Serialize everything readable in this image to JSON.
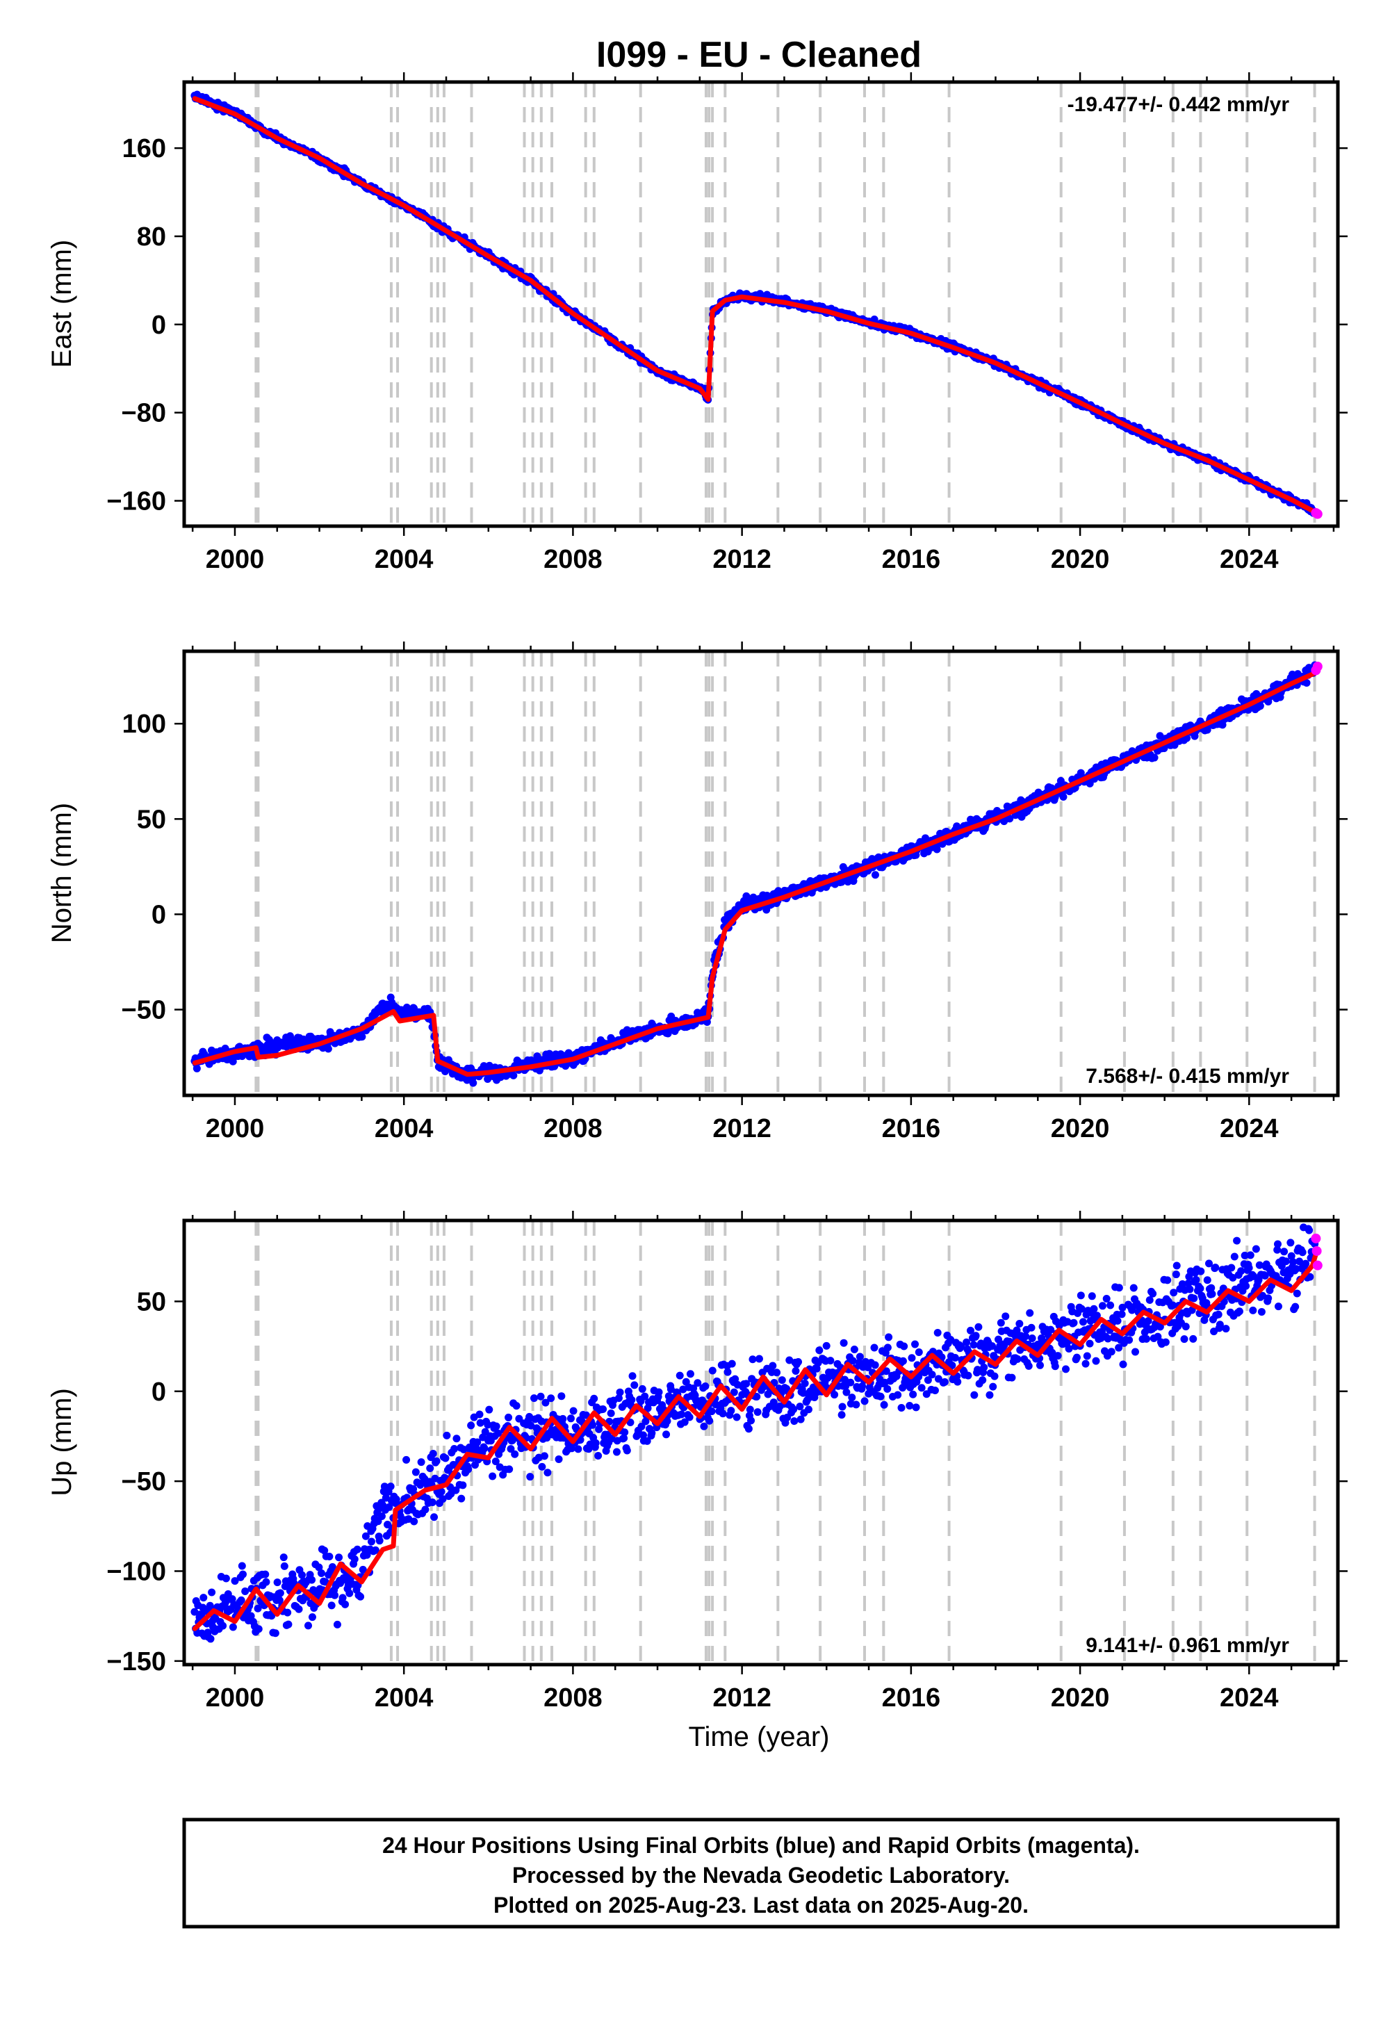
{
  "title": "I099  - EU - Cleaned",
  "xlabel": "Time (year)",
  "footer": {
    "line1": "24 Hour Positions Using Final Orbits (blue) and Rapid Orbits (magenta).",
    "line2": "Processed by the Nevada Geodetic Laboratory.",
    "line3": "Plotted on 2025-Aug-23. Last data on 2025-Aug-20."
  },
  "colors": {
    "final_orbits": "#0000ff",
    "rapid_orbits": "#ff00ff",
    "model_fit": "#ff0000",
    "event_lines": "#c8c8c8"
  },
  "chart_data": [
    {
      "type": "scatter",
      "component": "east",
      "ylabel": "East (mm)",
      "xlim": [
        1998.8,
        2026.1
      ],
      "ylim": [
        -183,
        220
      ],
      "x_ticks": [
        2000,
        2004,
        2008,
        2012,
        2016,
        2020,
        2024
      ],
      "y_ticks": [
        160,
        80,
        0,
        -80,
        -160
      ],
      "y_tick_labels": [
        "160",
        "80",
        "0",
        "−80",
        "−160"
      ],
      "rate_label": "-19.477+/- 0.442 mm/yr",
      "rate_label_position": "top-right",
      "scatter_spread_mm": 2.5,
      "series": [
        {
          "name": "24 Hour Positions Using Final Orbits",
          "color": "#0000ff",
          "x": [
            1999.05,
            2000.0,
            2001.0,
            2002.0,
            2003.0,
            2004.0,
            2005.0,
            2006.0,
            2007.0,
            2008.0,
            2009.0,
            2010.0,
            2011.0,
            2011.2,
            2011.3,
            2011.6,
            2012.0,
            2013.0,
            2014.0,
            2015.0,
            2016.0,
            2017.0,
            2018.0,
            2019.0,
            2020.0,
            2021.0,
            2022.0,
            2023.0,
            2024.0,
            2025.0,
            2025.55
          ],
          "y": [
            207,
            192,
            169,
            151,
            128,
            108,
            85,
            62,
            40,
            10,
            -16,
            -42,
            -58,
            -66,
            10,
            22,
            26,
            21,
            13,
            2,
            -8,
            -20,
            -35,
            -53,
            -71,
            -90,
            -108,
            -123,
            -141,
            -159,
            -170
          ]
        },
        {
          "name": "Rapid Orbits",
          "color": "#ff00ff",
          "x": [
            2025.58,
            2025.62
          ],
          "y": [
            -171,
            -172
          ]
        },
        {
          "name": "Model fit",
          "color": "#ff0000",
          "x": [
            1999.05,
            2000.0,
            2001.0,
            2002.0,
            2003.0,
            2004.0,
            2005.0,
            2006.0,
            2007.0,
            2008.0,
            2009.0,
            2010.0,
            2011.0,
            2011.2,
            2011.3,
            2011.6,
            2012.0,
            2013.0,
            2014.0,
            2015.0,
            2016.0,
            2017.0,
            2018.0,
            2019.0,
            2020.0,
            2021.0,
            2022.0,
            2023.0,
            2024.0,
            2025.0,
            2025.6
          ],
          "y": [
            205,
            191,
            169,
            151,
            128,
            108,
            85,
            62,
            40,
            10,
            -16,
            -42,
            -58,
            -68,
            12,
            22,
            25,
            20,
            12,
            1,
            -8,
            -21,
            -35,
            -53,
            -71,
            -90,
            -108,
            -123,
            -141,
            -159,
            -171
          ]
        }
      ],
      "event_lines": [
        2000.5,
        2000.55,
        2003.7,
        2003.85,
        2004.65,
        2004.8,
        2004.95,
        2005.6,
        2006.85,
        2007.05,
        2007.25,
        2007.5,
        2008.3,
        2008.5,
        2009.6,
        2011.15,
        2011.22,
        2011.3,
        2011.6,
        2012.85,
        2013.85,
        2014.9,
        2015.35,
        2016.9,
        2019.55,
        2021.05,
        2022.2,
        2022.85,
        2023.95,
        2025.55
      ]
    },
    {
      "type": "scatter",
      "component": "north",
      "ylabel": "North (mm)",
      "xlim": [
        1998.8,
        2026.1
      ],
      "ylim": [
        -95,
        138
      ],
      "x_ticks": [
        2000,
        2004,
        2008,
        2012,
        2016,
        2020,
        2024
      ],
      "y_ticks": [
        100,
        50,
        0,
        -50
      ],
      "y_tick_labels": [
        "100",
        "50",
        "0",
        "−50"
      ],
      "rate_label": "7.568+/- 0.415 mm/yr",
      "rate_label_position": "bottom-right",
      "scatter_spread_mm": 3,
      "series": [
        {
          "name": "24 Hour Positions Using Final Orbits",
          "color": "#0000ff",
          "x": [
            1999.05,
            2000.0,
            2001.0,
            2002.0,
            2003.0,
            2003.6,
            2003.9,
            2004.6,
            2004.85,
            2005.5,
            2006.0,
            2007.0,
            2008.0,
            2009.0,
            2010.0,
            2011.0,
            2011.2,
            2011.3,
            2011.6,
            2012.0,
            2013.0,
            2014.0,
            2015.0,
            2016.0,
            2017.0,
            2018.0,
            2019.0,
            2020.0,
            2021.0,
            2022.0,
            2023.0,
            2024.0,
            2025.0,
            2025.55
          ],
          "y": [
            -76,
            -73,
            -68,
            -67,
            -62,
            -45,
            -52,
            -52,
            -78,
            -85,
            -83,
            -79,
            -75,
            -67,
            -60,
            -55,
            -53,
            -30,
            -5,
            5,
            10,
            17,
            25,
            33,
            42,
            50,
            60,
            70,
            80,
            90,
            100,
            110,
            121,
            128
          ]
        },
        {
          "name": "Rapid Orbits",
          "color": "#ff00ff",
          "x": [
            2025.58,
            2025.62
          ],
          "y": [
            128,
            130
          ]
        },
        {
          "name": "Model fit",
          "color": "#ff0000",
          "x": [
            1999.05,
            2000.0,
            2000.5,
            2000.55,
            2001.0,
            2002.0,
            2003.0,
            2003.75,
            2003.9,
            2004.7,
            2004.8,
            2005.5,
            2006.0,
            2007.0,
            2008.0,
            2009.0,
            2010.0,
            2011.0,
            2011.2,
            2011.3,
            2011.6,
            2012.0,
            2013.0,
            2014.0,
            2015.0,
            2016.0,
            2017.0,
            2018.0,
            2019.0,
            2020.0,
            2021.0,
            2022.0,
            2023.0,
            2024.0,
            2025.0,
            2025.6
          ],
          "y": [
            -78,
            -72,
            -70,
            -75,
            -74,
            -68,
            -60,
            -51,
            -56,
            -53,
            -77,
            -84,
            -83,
            -80,
            -76,
            -68,
            -60,
            -55,
            -54,
            -33,
            -8,
            2,
            9,
            17,
            25,
            33,
            42,
            50,
            60,
            70,
            80,
            90,
            100,
            110,
            121,
            127
          ]
        }
      ],
      "event_lines": [
        2000.5,
        2000.55,
        2003.7,
        2003.85,
        2004.65,
        2004.8,
        2004.95,
        2005.6,
        2006.85,
        2007.05,
        2007.25,
        2007.5,
        2008.3,
        2008.5,
        2009.6,
        2011.15,
        2011.22,
        2011.3,
        2011.6,
        2012.85,
        2013.85,
        2014.9,
        2015.35,
        2016.9,
        2019.55,
        2021.05,
        2022.2,
        2022.85,
        2023.95,
        2025.55
      ]
    },
    {
      "type": "scatter",
      "component": "up",
      "ylabel": "Up (mm)",
      "xlim": [
        1998.8,
        2026.1
      ],
      "ylim": [
        -152,
        95
      ],
      "x_ticks": [
        2000,
        2004,
        2008,
        2012,
        2016,
        2020,
        2024
      ],
      "y_ticks": [
        50,
        0,
        -50,
        -100,
        -150
      ],
      "y_tick_labels": [
        "50",
        "0",
        "−50",
        "−100",
        "−150"
      ],
      "rate_label": "9.141+/- 0.961 mm/yr",
      "rate_label_position": "bottom-right",
      "scatter_spread_mm": 14,
      "series": [
        {
          "name": "24 Hour Positions Using Final Orbits",
          "color": "#0000ff",
          "x": [
            1999.05,
            2000.0,
            2001.0,
            2002.0,
            2003.0,
            2003.5,
            2003.8,
            2004.0,
            2005.0,
            2006.0,
            2007.0,
            2008.0,
            2009.0,
            2010.0,
            2011.0,
            2012.0,
            2013.0,
            2014.0,
            2015.0,
            2016.0,
            2017.0,
            2018.0,
            2019.0,
            2020.0,
            2021.0,
            2022.0,
            2023.0,
            2024.0,
            2025.0,
            2025.55
          ],
          "y": [
            -128,
            -120,
            -116,
            -110,
            -100,
            -60,
            -65,
            -60,
            -45,
            -30,
            -25,
            -20,
            -15,
            -10,
            -5,
            -2,
            0,
            5,
            10,
            12,
            15,
            22,
            27,
            32,
            40,
            45,
            52,
            60,
            65,
            75
          ]
        },
        {
          "name": "Rapid Orbits",
          "color": "#ff00ff",
          "x": [
            2025.58,
            2025.6,
            2025.62
          ],
          "y": [
            85,
            78,
            70
          ]
        },
        {
          "name": "Model fit",
          "color": "#ff0000",
          "x": [
            1999.05,
            1999.5,
            2000.0,
            2000.5,
            2001.0,
            2001.5,
            2002.0,
            2002.5,
            2003.0,
            2003.5,
            2003.75,
            2003.8,
            2004.5,
            2005.0,
            2005.5,
            2006.0,
            2006.5,
            2007.0,
            2007.5,
            2008.0,
            2008.5,
            2009.0,
            2009.5,
            2010.0,
            2010.5,
            2011.0,
            2011.5,
            2012.0,
            2012.5,
            2013.0,
            2013.5,
            2014.0,
            2014.5,
            2015.0,
            2015.5,
            2016.0,
            2016.5,
            2017.0,
            2017.5,
            2018.0,
            2018.5,
            2019.0,
            2019.5,
            2020.0,
            2020.5,
            2021.0,
            2021.5,
            2022.0,
            2022.5,
            2023.0,
            2023.5,
            2024.0,
            2024.5,
            2025.0,
            2025.5,
            2025.6
          ],
          "y": [
            -132,
            -122,
            -128,
            -110,
            -124,
            -108,
            -118,
            -96,
            -106,
            -88,
            -86,
            -66,
            -55,
            -52,
            -35,
            -37,
            -20,
            -32,
            -15,
            -28,
            -12,
            -24,
            -8,
            -18,
            -3,
            -14,
            3,
            -10,
            8,
            -6,
            12,
            -2,
            15,
            5,
            18,
            8,
            20,
            10,
            22,
            15,
            28,
            20,
            34,
            26,
            40,
            32,
            44,
            38,
            50,
            44,
            56,
            50,
            62,
            56,
            70,
            78
          ]
        }
      ],
      "event_lines": [
        2000.5,
        2000.55,
        2003.7,
        2003.85,
        2004.65,
        2004.8,
        2004.95,
        2005.6,
        2006.85,
        2007.05,
        2007.25,
        2007.5,
        2008.3,
        2008.5,
        2009.6,
        2011.15,
        2011.22,
        2011.3,
        2011.6,
        2012.85,
        2013.85,
        2014.9,
        2015.35,
        2016.9,
        2019.55,
        2021.05,
        2022.2,
        2022.85,
        2023.95,
        2025.55
      ]
    }
  ]
}
